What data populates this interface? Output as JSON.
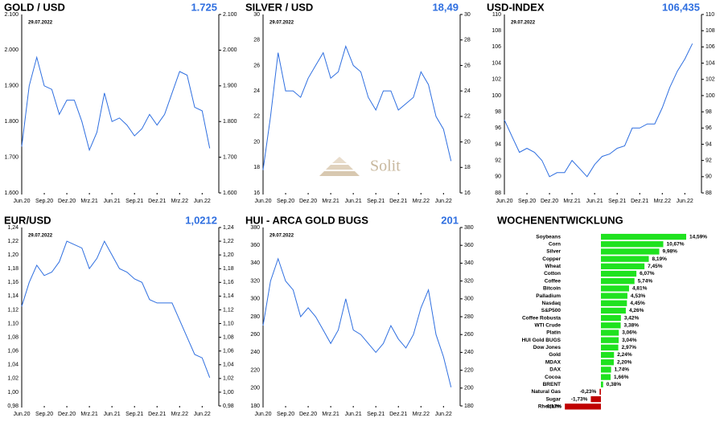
{
  "chart_data": [
    {
      "type": "line",
      "title": "GOLD / USD",
      "current": "1.725",
      "annotation": "29.07.2022",
      "color": "#2f6fe0",
      "x": [
        "2020-06",
        "2020-07",
        "2020-08",
        "2020-09",
        "2020-10",
        "2020-11",
        "2020-12",
        "2021-01",
        "2021-02",
        "2021-03",
        "2021-04",
        "2021-05",
        "2021-06",
        "2021-07",
        "2021-08",
        "2021-09",
        "2021-10",
        "2021-11",
        "2021-12",
        "2022-01",
        "2022-02",
        "2022-03",
        "2022-04",
        "2022-05",
        "2022-06",
        "2022-07"
      ],
      "values": [
        1730,
        1900,
        1980,
        1900,
        1890,
        1820,
        1860,
        1860,
        1800,
        1720,
        1770,
        1880,
        1800,
        1810,
        1790,
        1760,
        1780,
        1820,
        1790,
        1820,
        1880,
        1940,
        1930,
        1840,
        1830,
        1725
      ],
      "xlim": [
        "2020-06",
        "2022-08"
      ],
      "xticks": [
        {
          "value": "2020-06",
          "label": "Jun.20"
        },
        {
          "value": "2020-09",
          "label": "Sep.20"
        },
        {
          "value": "2020-12",
          "label": "Dez.20"
        },
        {
          "value": "2021-03",
          "label": "Mrz.21"
        },
        {
          "value": "2021-06",
          "label": "Jun.21"
        },
        {
          "value": "2021-09",
          "label": "Sep.21"
        },
        {
          "value": "2021-12",
          "label": "Dez.21"
        },
        {
          "value": "2022-03",
          "label": "Mrz.22"
        },
        {
          "value": "2022-06",
          "label": "Jun.22"
        }
      ],
      "ylim": [
        1600,
        2100
      ],
      "yticks": [
        {
          "value": 1600,
          "label": "1.600"
        },
        {
          "value": 1700,
          "label": "1.700"
        },
        {
          "value": 1800,
          "label": "1.800"
        },
        {
          "value": 1900,
          "label": "1.900"
        },
        {
          "value": 2000,
          "label": "2.000"
        },
        {
          "value": 2100,
          "label": "2.100"
        }
      ]
    },
    {
      "type": "line",
      "title": "SILVER / USD",
      "current": "18,49",
      "annotation": "29.07.2022",
      "color": "#2f6fe0",
      "x": [
        "2020-06",
        "2020-07",
        "2020-08",
        "2020-09",
        "2020-10",
        "2020-11",
        "2020-12",
        "2021-01",
        "2021-02",
        "2021-03",
        "2021-04",
        "2021-05",
        "2021-06",
        "2021-07",
        "2021-08",
        "2021-09",
        "2021-10",
        "2021-11",
        "2021-12",
        "2022-01",
        "2022-02",
        "2022-03",
        "2022-04",
        "2022-05",
        "2022-06",
        "2022-07"
      ],
      "values": [
        17.8,
        22,
        27,
        24,
        24,
        23.5,
        25,
        26,
        27,
        25,
        25.5,
        27.5,
        26,
        25.5,
        23.5,
        22.5,
        24,
        24,
        22.5,
        23,
        23.5,
        25.5,
        24.5,
        22,
        21,
        18.5
      ],
      "xlim": [
        "2020-06",
        "2022-08"
      ],
      "xticks": [
        {
          "value": "2020-06",
          "label": "Jun.20"
        },
        {
          "value": "2020-09",
          "label": "Sep.20"
        },
        {
          "value": "2020-12",
          "label": "Dez.20"
        },
        {
          "value": "2021-03",
          "label": "Mrz.21"
        },
        {
          "value": "2021-06",
          "label": "Jun.21"
        },
        {
          "value": "2021-09",
          "label": "Sep.21"
        },
        {
          "value": "2021-12",
          "label": "Dez.21"
        },
        {
          "value": "2022-03",
          "label": "Mrz.22"
        },
        {
          "value": "2022-06",
          "label": "Jun.22"
        }
      ],
      "ylim": [
        16,
        30
      ],
      "yticks": [
        16,
        18,
        20,
        22,
        24,
        26,
        28,
        30
      ]
    },
    {
      "type": "line",
      "title": "USD-INDEX",
      "current": "106,435",
      "annotation": "29.07.2022",
      "color": "#2f6fe0",
      "x": [
        "2020-06",
        "2020-07",
        "2020-08",
        "2020-09",
        "2020-10",
        "2020-11",
        "2020-12",
        "2021-01",
        "2021-02",
        "2021-03",
        "2021-04",
        "2021-05",
        "2021-06",
        "2021-07",
        "2021-08",
        "2021-09",
        "2021-10",
        "2021-11",
        "2021-12",
        "2022-01",
        "2022-02",
        "2022-03",
        "2022-04",
        "2022-05",
        "2022-06",
        "2022-07"
      ],
      "values": [
        97,
        95,
        93,
        93.5,
        93,
        92,
        90,
        90.5,
        90.5,
        92,
        91,
        90,
        91.5,
        92.5,
        92.8,
        93.5,
        93.8,
        96,
        96,
        96.5,
        96.5,
        98.5,
        101,
        103,
        104.5,
        106.4
      ],
      "xlim": [
        "2020-06",
        "2022-08"
      ],
      "xticks": [
        {
          "value": "2020-06",
          "label": "Jun.20"
        },
        {
          "value": "2020-09",
          "label": "Sep.20"
        },
        {
          "value": "2020-12",
          "label": "Dez.20"
        },
        {
          "value": "2021-03",
          "label": "Mrz.21"
        },
        {
          "value": "2021-06",
          "label": "Jun.21"
        },
        {
          "value": "2021-09",
          "label": "Sep.21"
        },
        {
          "value": "2021-12",
          "label": "Dez.21"
        },
        {
          "value": "2022-03",
          "label": "Mrz.22"
        },
        {
          "value": "2022-06",
          "label": "Jun.22"
        }
      ],
      "ylim": [
        88,
        110
      ],
      "yticks": [
        88,
        90,
        92,
        94,
        96,
        98,
        100,
        102,
        104,
        106,
        108,
        110
      ]
    },
    {
      "type": "line",
      "title": "EUR/USD",
      "current": "1,0212",
      "annotation": "29.07.2022",
      "color": "#2f6fe0",
      "x": [
        "2020-06",
        "2020-07",
        "2020-08",
        "2020-09",
        "2020-10",
        "2020-11",
        "2020-12",
        "2021-01",
        "2021-02",
        "2021-03",
        "2021-04",
        "2021-05",
        "2021-06",
        "2021-07",
        "2021-08",
        "2021-09",
        "2021-10",
        "2021-11",
        "2021-12",
        "2022-01",
        "2022-02",
        "2022-03",
        "2022-04",
        "2022-05",
        "2022-06",
        "2022-07"
      ],
      "values": [
        1.125,
        1.16,
        1.185,
        1.17,
        1.175,
        1.19,
        1.22,
        1.215,
        1.21,
        1.18,
        1.195,
        1.22,
        1.2,
        1.18,
        1.175,
        1.165,
        1.16,
        1.135,
        1.13,
        1.13,
        1.13,
        1.105,
        1.08,
        1.055,
        1.05,
        1.0212
      ],
      "xlim": [
        "2020-06",
        "2022-08"
      ],
      "xticks": [
        {
          "value": "2020-06",
          "label": "Jun.20"
        },
        {
          "value": "2020-09",
          "label": "Sep.20"
        },
        {
          "value": "2020-12",
          "label": "Dez.20"
        },
        {
          "value": "2021-03",
          "label": "Mrz.21"
        },
        {
          "value": "2021-06",
          "label": "Jun.21"
        },
        {
          "value": "2021-09",
          "label": "Sep.21"
        },
        {
          "value": "2021-12",
          "label": "Dez.21"
        },
        {
          "value": "2022-03",
          "label": "Mrz.22"
        },
        {
          "value": "2022-06",
          "label": "Jun.22"
        }
      ],
      "ylim": [
        0.98,
        1.24
      ],
      "yticks": [
        {
          "value": 0.98,
          "label": "0,98"
        },
        {
          "value": 1.0,
          "label": "1,00"
        },
        {
          "value": 1.02,
          "label": "1,02"
        },
        {
          "value": 1.04,
          "label": "1,04"
        },
        {
          "value": 1.06,
          "label": "1,06"
        },
        {
          "value": 1.08,
          "label": "1,08"
        },
        {
          "value": 1.1,
          "label": "1,10"
        },
        {
          "value": 1.12,
          "label": "1,12"
        },
        {
          "value": 1.14,
          "label": "1,14"
        },
        {
          "value": 1.16,
          "label": "1,16"
        },
        {
          "value": 1.18,
          "label": "1,18"
        },
        {
          "value": 1.2,
          "label": "1,20"
        },
        {
          "value": 1.22,
          "label": "1,22"
        },
        {
          "value": 1.24,
          "label": "1,24"
        }
      ]
    },
    {
      "type": "line",
      "title": "HUI - ARCA GOLD BUGS",
      "current": "201",
      "annotation": "29.07.2022",
      "color": "#2f6fe0",
      "x": [
        "2020-06",
        "2020-07",
        "2020-08",
        "2020-09",
        "2020-10",
        "2020-11",
        "2020-12",
        "2021-01",
        "2021-02",
        "2021-03",
        "2021-04",
        "2021-05",
        "2021-06",
        "2021-07",
        "2021-08",
        "2021-09",
        "2021-10",
        "2021-11",
        "2021-12",
        "2022-01",
        "2022-02",
        "2022-03",
        "2022-04",
        "2022-05",
        "2022-06",
        "2022-07"
      ],
      "values": [
        270,
        320,
        345,
        320,
        310,
        280,
        290,
        280,
        265,
        250,
        265,
        300,
        265,
        260,
        250,
        240,
        250,
        270,
        255,
        245,
        260,
        290,
        310,
        260,
        235,
        201
      ],
      "xlim": [
        "2020-06",
        "2022-08"
      ],
      "xticks": [
        {
          "value": "2020-06",
          "label": "Jun.20"
        },
        {
          "value": "2020-09",
          "label": "Sep.20"
        },
        {
          "value": "2020-12",
          "label": "Dez.20"
        },
        {
          "value": "2021-03",
          "label": "Mrz.21"
        },
        {
          "value": "2021-06",
          "label": "Jun.21"
        },
        {
          "value": "2021-09",
          "label": "Sep.21"
        },
        {
          "value": "2021-12",
          "label": "Dez.21"
        },
        {
          "value": "2022-03",
          "label": "Mrz.22"
        },
        {
          "value": "2022-06",
          "label": "Jun.22"
        }
      ],
      "ylim": [
        180,
        380
      ],
      "yticks": [
        180,
        200,
        220,
        240,
        260,
        280,
        300,
        320,
        340,
        360,
        380
      ]
    },
    {
      "type": "hbar",
      "title": "WOCHENENTWICKLUNG",
      "color": "#1fe21f",
      "negative_color": "#c00000",
      "categories": [
        "Soybeans",
        "Corn",
        "Silver",
        "Copper",
        "Wheat",
        "Cotton",
        "Coffee",
        "Bitcoin",
        "Palladium",
        "Nasdaq",
        "S&P500",
        "Coffee Robusta",
        "WTI Crude",
        "Platin",
        "HUI Gold BUGS",
        "Dow Jones",
        "Gold",
        "MDAX",
        "DAX",
        "Cocoa",
        "BRENT",
        "Natural Gas",
        "Sugar",
        "Rhodium"
      ],
      "values": [
        14.59,
        10.67,
        9.98,
        8.19,
        7.45,
        6.07,
        5.74,
        4.81,
        4.53,
        4.45,
        4.26,
        3.42,
        3.38,
        3.06,
        3.04,
        2.97,
        2.24,
        2.2,
        1.74,
        1.66,
        0.38,
        -0.23,
        -1.73,
        -6.17
      ],
      "value_labels": [
        "14,59%",
        "10,67%",
        "9,98%",
        "8,19%",
        "7,45%",
        "6,07%",
        "5,74%",
        "4,81%",
        "4,53%",
        "4,45%",
        "4,26%",
        "3,42%",
        "3,38%",
        "3,06%",
        "3,04%",
        "2,97%",
        "2,24%",
        "2,20%",
        "1,74%",
        "1,66%",
        "0,38%",
        "-0,23%",
        "-1,73%",
        "-6,17%"
      ]
    }
  ],
  "watermark": "Solit"
}
